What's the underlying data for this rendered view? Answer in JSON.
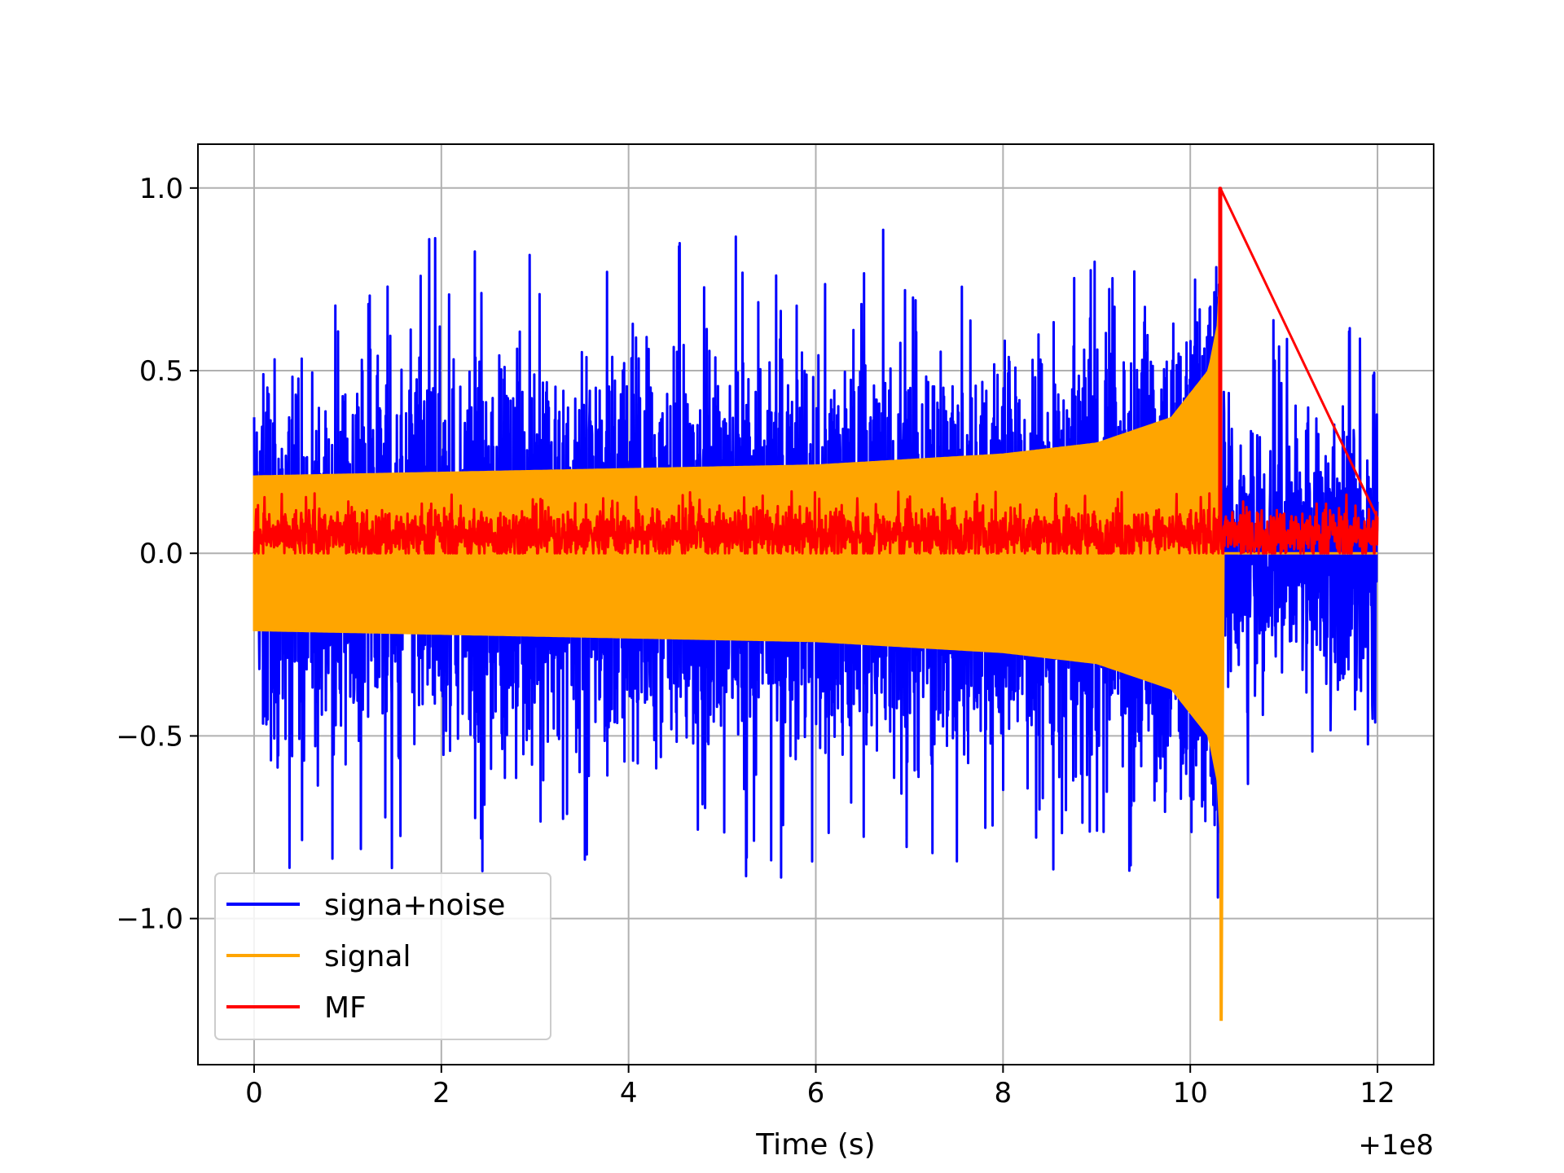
{
  "chart_data": {
    "type": "line",
    "title": "",
    "xlabel": "Time (s)",
    "ylabel": "",
    "x_offset_label": "+1e8",
    "xlim": [
      -0.6,
      12.6
    ],
    "ylim": [
      -1.4,
      1.12
    ],
    "xticks": [
      0,
      2,
      4,
      6,
      8,
      10,
      12
    ],
    "xtick_labels": [
      "0",
      "2",
      "4",
      "6",
      "8",
      "10",
      "12"
    ],
    "yticks": [
      -1.0,
      -0.5,
      0.0,
      0.5,
      1.0
    ],
    "ytick_labels": [
      "−1.0",
      "−0.5",
      "0.0",
      "0.5",
      "1.0"
    ],
    "grid": true,
    "legend_position": "lower-left",
    "series": [
      {
        "name": "signa+noise",
        "color": "#0000ff",
        "x_range": [
          0,
          12
        ],
        "envelope_x": [
          0,
          2,
          4,
          6,
          8,
          9,
          9.8,
          10.2,
          10.3,
          10.32,
          10.35,
          12
        ],
        "envelope_upper": [
          0.21,
          0.22,
          0.23,
          0.24,
          0.27,
          0.3,
          0.37,
          0.5,
          0.63,
          0.75,
          0,
          0
        ],
        "noise_amplitude": 0.5,
        "max": 1.0,
        "min": -1.27
      },
      {
        "name": "signal",
        "color": "#ffa500",
        "x_range": [
          0,
          10.33
        ],
        "envelope_x": [
          0,
          2,
          4,
          6,
          8,
          9,
          9.8,
          10.2,
          10.3,
          10.32
        ],
        "envelope_upper": [
          0.21,
          0.22,
          0.23,
          0.24,
          0.27,
          0.3,
          0.37,
          0.5,
          0.63,
          0.75
        ],
        "max": 0.75,
        "min": -1.28,
        "merger_time": 10.32
      },
      {
        "name": "MF",
        "color": "#ff0000",
        "x_range": [
          0,
          12
        ],
        "baseline": 0.05,
        "noise_amplitude": 0.08,
        "peak_time": 10.32,
        "peak_value": 1.0
      }
    ]
  }
}
